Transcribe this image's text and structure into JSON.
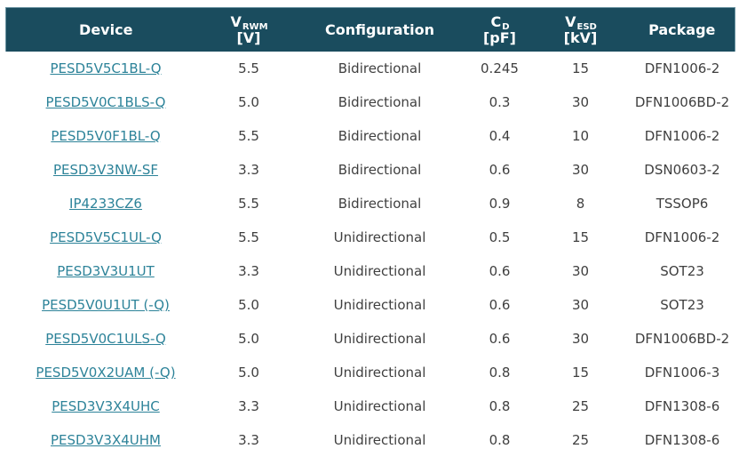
{
  "colors": {
    "header_bg": "#1a4c5e",
    "header_border": "#6b93a1",
    "header_text": "#ffffff",
    "link": "#2d8399",
    "body_text": "#3f3f3f",
    "page_bg": "#ffffff"
  },
  "table": {
    "headers": {
      "device": "Device",
      "vrwm": {
        "letter": "V",
        "sub": "RWM",
        "unit": "[V]"
      },
      "configuration": "Configuration",
      "cd": {
        "letter": "C",
        "sub": "D",
        "unit": "[pF]"
      },
      "vesd": {
        "letter": "V",
        "sub": "ESD",
        "unit": "[kV]"
      },
      "package": "Package"
    },
    "rows": [
      {
        "device": "PESD5V5C1BL-Q",
        "vrwm": "5.5",
        "config": "Bidirectional",
        "cd": "0.245",
        "vesd": "15",
        "package": "DFN1006-2"
      },
      {
        "device": "PESD5V0C1BLS-Q",
        "vrwm": "5.0",
        "config": "Bidirectional",
        "cd": "0.3",
        "vesd": "30",
        "package": "DFN1006BD-2"
      },
      {
        "device": "PESD5V0F1BL-Q",
        "vrwm": "5.5",
        "config": "Bidirectional",
        "cd": "0.4",
        "vesd": "10",
        "package": "DFN1006-2"
      },
      {
        "device": "PESD3V3NW-SF",
        "vrwm": "3.3",
        "config": "Bidirectional",
        "cd": "0.6",
        "vesd": "30",
        "package": "DSN0603-2"
      },
      {
        "device": "IP4233CZ6",
        "vrwm": "5.5",
        "config": "Bidirectional",
        "cd": "0.9",
        "vesd": "8",
        "package": "TSSOP6"
      },
      {
        "device": "PESD5V5C1UL-Q",
        "vrwm": "5.5",
        "config": "Unidirectional",
        "cd": "0.5",
        "vesd": "15",
        "package": "DFN1006-2"
      },
      {
        "device": "PESD3V3U1UT",
        "vrwm": "3.3",
        "config": "Unidirectional",
        "cd": "0.6",
        "vesd": "30",
        "package": "SOT23"
      },
      {
        "device": "PESD5V0U1UT (-Q)",
        "vrwm": "5.0",
        "config": "Unidirectional",
        "cd": "0.6",
        "vesd": "30",
        "package": "SOT23"
      },
      {
        "device": "PESD5V0C1ULS-Q",
        "vrwm": "5.0",
        "config": "Unidirectional",
        "cd": "0.6",
        "vesd": "30",
        "package": "DFN1006BD-2"
      },
      {
        "device": "PESD5V0X2UAM (-Q)",
        "vrwm": "5.0",
        "config": "Unidirectional",
        "cd": "0.8",
        "vesd": "15",
        "package": "DFN1006-3"
      },
      {
        "device": "PESD3V3X4UHC",
        "vrwm": "3.3",
        "config": "Unidirectional",
        "cd": "0.8",
        "vesd": "25",
        "package": "DFN1308-6"
      },
      {
        "device": "PESD3V3X4UHM",
        "vrwm": "3.3",
        "config": "Unidirectional",
        "cd": "0.8",
        "vesd": "25",
        "package": "DFN1308-6"
      }
    ]
  }
}
